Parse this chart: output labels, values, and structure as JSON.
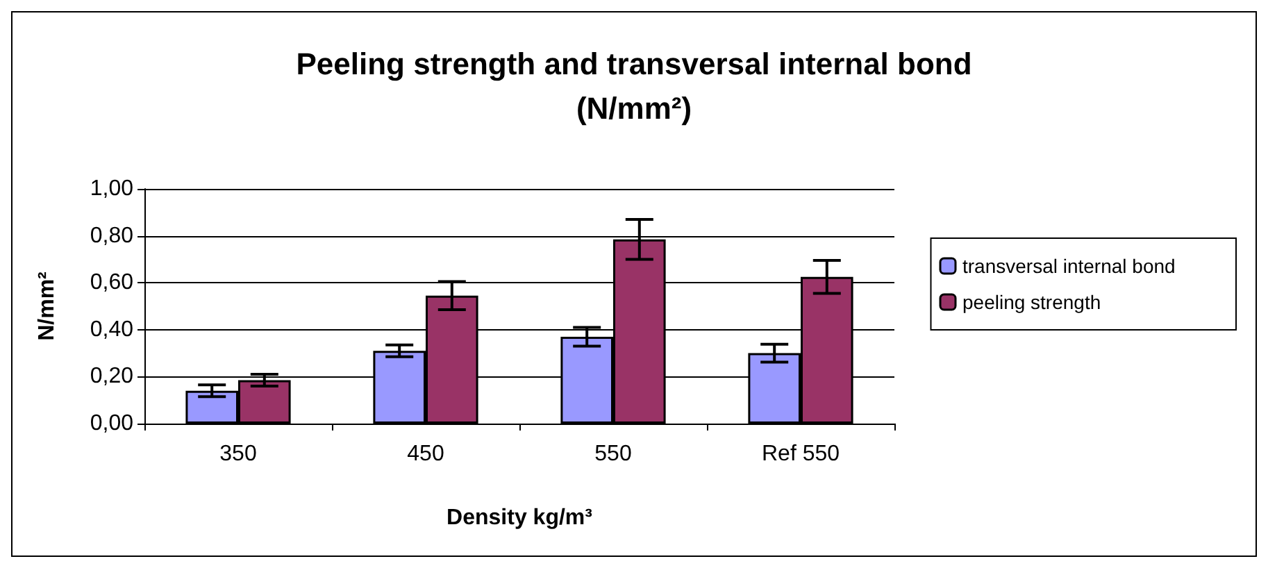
{
  "chart_data": {
    "type": "bar",
    "title": "Peeling strength and transversal internal bond\n(N/mm²)",
    "xlabel": "Density kg/m³",
    "ylabel": "N/mm²",
    "categories": [
      "350",
      "450",
      "550",
      "Ref 550"
    ],
    "series": [
      {
        "name": "transversal internal bond",
        "color": "#9999ff",
        "values": [
          0.14,
          0.31,
          0.37,
          0.3
        ],
        "errors": [
          0.025,
          0.025,
          0.04,
          0.038
        ]
      },
      {
        "name": "peeling strength",
        "color": "#993366",
        "values": [
          0.185,
          0.545,
          0.785,
          0.625
        ],
        "errors": [
          0.025,
          0.06,
          0.085,
          0.07
        ]
      }
    ],
    "ylim": [
      0,
      1
    ],
    "yticks": [
      {
        "value": 0,
        "label": "0,00"
      },
      {
        "value": 0.2,
        "label": "0,20"
      },
      {
        "value": 0.4,
        "label": "0,40"
      },
      {
        "value": 0.6,
        "label": "0,60"
      },
      {
        "value": 0.8,
        "label": "0,80"
      },
      {
        "value": 1,
        "label": "1,00"
      }
    ],
    "grid": "y",
    "legend": "right"
  }
}
